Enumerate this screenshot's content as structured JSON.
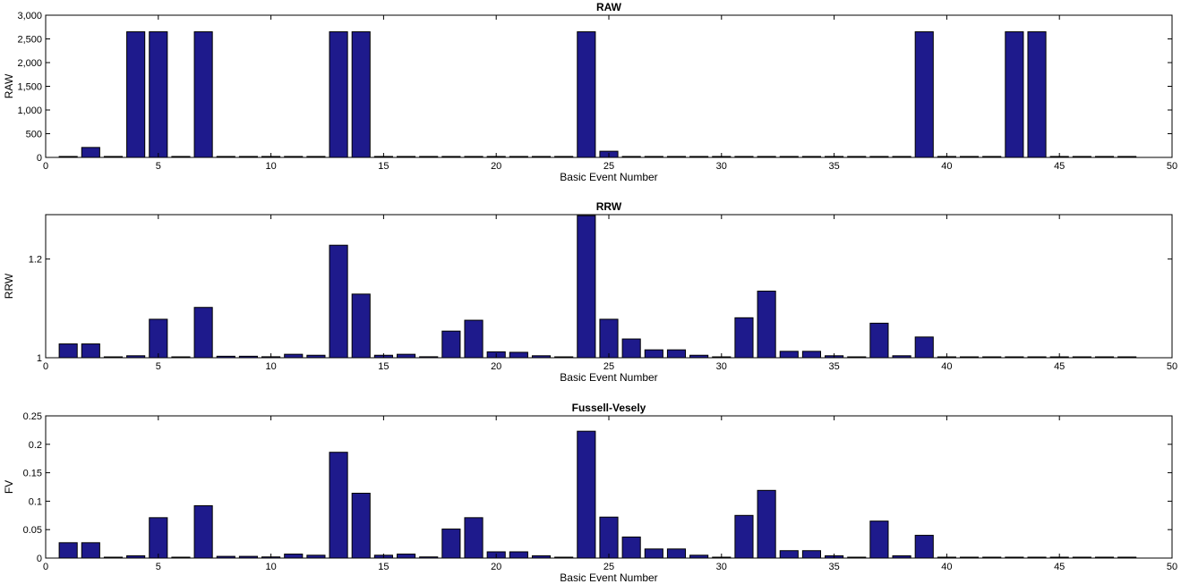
{
  "chart_data": [
    {
      "type": "bar",
      "title": "RAW",
      "xlabel": "Basic Event Number",
      "ylabel": "RAW",
      "xlim": [
        0,
        50
      ],
      "ylim": [
        0,
        3000
      ],
      "xticks": [
        0,
        5,
        10,
        15,
        20,
        25,
        30,
        35,
        40,
        45,
        50
      ],
      "yticks": [
        0,
        500,
        1000,
        1500,
        2000,
        2500,
        3000
      ],
      "ytick_labels": [
        "0",
        "500",
        "1,000",
        "1,500",
        "2,000",
        "2,500",
        "3,000"
      ],
      "bar_color": "#1e1a8c",
      "x": [
        1,
        2,
        3,
        4,
        5,
        6,
        7,
        8,
        9,
        10,
        11,
        12,
        13,
        14,
        15,
        16,
        17,
        18,
        19,
        20,
        21,
        22,
        23,
        24,
        25,
        26,
        27,
        28,
        29,
        30,
        31,
        32,
        33,
        34,
        35,
        36,
        37,
        38,
        39,
        40,
        41,
        42,
        43,
        44,
        45,
        46,
        47,
        48
      ],
      "values": [
        1,
        210,
        1,
        2650,
        2650,
        1,
        2650,
        1,
        1,
        1,
        1,
        1,
        2650,
        2650,
        1,
        1,
        1,
        1,
        1,
        1,
        1,
        1,
        1,
        2650,
        130,
        1,
        1,
        1,
        1,
        1,
        1,
        1,
        1,
        1,
        1,
        1,
        1,
        1,
        2650,
        1,
        1,
        1,
        2650,
        2650,
        1,
        1,
        1,
        1
      ]
    },
    {
      "type": "bar",
      "title": "RRW",
      "xlabel": "Basic Event Number",
      "ylabel": "RRW",
      "xlim": [
        0,
        50
      ],
      "ylim": [
        1,
        1.29
      ],
      "ybase": 1,
      "xticks": [
        0,
        5,
        10,
        15,
        20,
        25,
        30,
        35,
        40,
        45,
        50
      ],
      "yticks": [
        1,
        1.2
      ],
      "ytick_labels": [
        "1",
        "1.2"
      ],
      "bar_color": "#1e1a8c",
      "x": [
        1,
        2,
        3,
        4,
        5,
        6,
        7,
        8,
        9,
        10,
        11,
        12,
        13,
        14,
        15,
        16,
        17,
        18,
        19,
        20,
        21,
        22,
        23,
        24,
        25,
        26,
        27,
        28,
        29,
        30,
        31,
        32,
        33,
        34,
        35,
        36,
        37,
        38,
        39,
        40,
        41,
        42,
        43,
        44,
        45,
        46,
        47,
        48
      ],
      "values": [
        1.028,
        1.028,
        1.0,
        1.004,
        1.078,
        1.0,
        1.102,
        1.003,
        1.003,
        1.002,
        1.007,
        1.005,
        1.228,
        1.129,
        1.005,
        1.007,
        1.002,
        1.054,
        1.076,
        1.012,
        1.011,
        1.004,
        1.0,
        1.288,
        1.078,
        1.038,
        1.016,
        1.016,
        1.005,
        1.0,
        1.081,
        1.135,
        1.013,
        1.013,
        1.004,
        1.0,
        1.07,
        1.004,
        1.042,
        1.0,
        1.0,
        1.0,
        1.0,
        1.0,
        1.0,
        1.0,
        1.0,
        1.0
      ]
    },
    {
      "type": "bar",
      "title": "Fussell-Vesely",
      "xlabel": "Basic Event Number",
      "ylabel": "FV",
      "xlim": [
        0,
        50
      ],
      "ylim": [
        0,
        0.25
      ],
      "xticks": [
        0,
        5,
        10,
        15,
        20,
        25,
        30,
        35,
        40,
        45,
        50
      ],
      "yticks": [
        0,
        0.05,
        0.1,
        0.15,
        0.2,
        0.25
      ],
      "ytick_labels": [
        "0",
        "0.05",
        "0.1",
        "0.15",
        "0.2",
        "0.25"
      ],
      "bar_color": "#1e1a8c",
      "x": [
        1,
        2,
        3,
        4,
        5,
        6,
        7,
        8,
        9,
        10,
        11,
        12,
        13,
        14,
        15,
        16,
        17,
        18,
        19,
        20,
        21,
        22,
        23,
        24,
        25,
        26,
        27,
        28,
        29,
        30,
        31,
        32,
        33,
        34,
        35,
        36,
        37,
        38,
        39,
        40,
        41,
        42,
        43,
        44,
        45,
        46,
        47,
        48
      ],
      "values": [
        0.027,
        0.027,
        0.0,
        0.004,
        0.071,
        0.0,
        0.092,
        0.003,
        0.003,
        0.002,
        0.007,
        0.005,
        0.186,
        0.114,
        0.005,
        0.007,
        0.002,
        0.051,
        0.071,
        0.011,
        0.011,
        0.004,
        0.0,
        0.223,
        0.072,
        0.037,
        0.016,
        0.016,
        0.005,
        0.0,
        0.075,
        0.119,
        0.013,
        0.013,
        0.004,
        0.0,
        0.065,
        0.004,
        0.04,
        0.0,
        0.0,
        0.0,
        0.0,
        0.0,
        0.0,
        0.0,
        0.0,
        0.0
      ]
    }
  ]
}
